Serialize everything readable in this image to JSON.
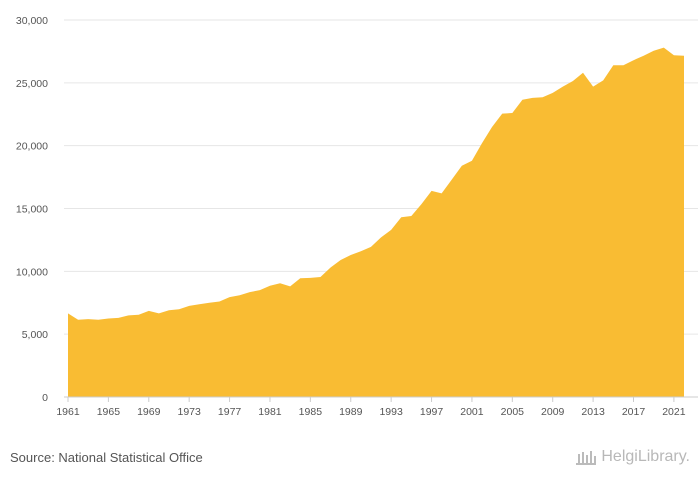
{
  "source": "Source: National Statistical Office",
  "brand": {
    "name": "HelgiLibrary.",
    "logo_icon": "library-columns-icon"
  },
  "colors": {
    "area": "#F9BC33",
    "grid": "#e6e6e6",
    "axis": "#cccccc",
    "text": "#555555"
  },
  "chart_data": {
    "type": "area",
    "title": "",
    "xlabel": "",
    "ylabel": "",
    "grid": true,
    "legend": "none",
    "ylim": [
      0,
      30000
    ],
    "y_ticks": [
      "0",
      "5,000",
      "10,000",
      "15,000",
      "20,000",
      "25,000",
      "30,000"
    ],
    "x_ticks": [
      "1961",
      "1965",
      "1969",
      "1973",
      "1977",
      "1981",
      "1985",
      "1989",
      "1993",
      "1997",
      "2001",
      "2005",
      "2009",
      "2013",
      "2017",
      "2021"
    ],
    "x": [
      1961,
      1962,
      1963,
      1964,
      1965,
      1966,
      1967,
      1968,
      1969,
      1970,
      1971,
      1972,
      1973,
      1974,
      1975,
      1976,
      1977,
      1978,
      1979,
      1980,
      1981,
      1982,
      1983,
      1984,
      1985,
      1986,
      1987,
      1988,
      1989,
      1990,
      1991,
      1992,
      1993,
      1994,
      1995,
      1996,
      1997,
      1998,
      1999,
      2000,
      2001,
      2002,
      2003,
      2004,
      2005,
      2006,
      2007,
      2008,
      2009,
      2010,
      2011,
      2012,
      2013,
      2014,
      2015,
      2016,
      2017,
      2018,
      2019,
      2020,
      2021,
      2022
    ],
    "values": [
      6650,
      6150,
      6200,
      6150,
      6250,
      6300,
      6500,
      6550,
      6850,
      6650,
      6900,
      6980,
      7250,
      7380,
      7500,
      7600,
      7950,
      8100,
      8350,
      8500,
      8850,
      9050,
      8800,
      9450,
      9480,
      9550,
      10300,
      10900,
      11300,
      11600,
      11950,
      12700,
      13300,
      14300,
      14400,
      15350,
      16400,
      16200,
      17300,
      18400,
      18800,
      20200,
      21500,
      22550,
      22600,
      23650,
      23800,
      23850,
      24200,
      24700,
      25150,
      25800,
      24700,
      25200,
      26400,
      26400,
      26800,
      27150,
      27550,
      27800,
      27200,
      27150
    ]
  }
}
